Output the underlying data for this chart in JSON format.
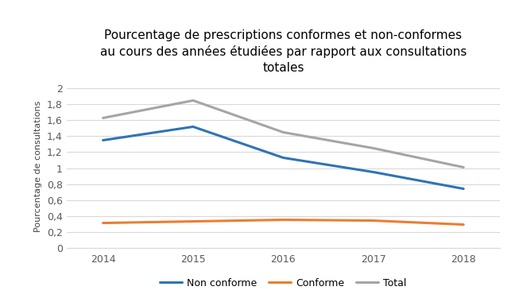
{
  "title": "Pourcentage de prescriptions conformes et non-conformes\nau cours des années étudiées par rapport aux consultations\ntotales",
  "ylabel": "Pourcentage de consultations",
  "years": [
    2014,
    2015,
    2016,
    2017,
    2018
  ],
  "non_conforme": [
    1.35,
    1.52,
    1.13,
    0.95,
    0.74
  ],
  "conforme": [
    0.31,
    0.33,
    0.35,
    0.34,
    0.29
  ],
  "total": [
    1.63,
    1.85,
    1.45,
    1.25,
    1.01
  ],
  "non_conforme_color": "#2E74B5",
  "conforme_color": "#ED7D31",
  "total_color": "#A5A5A5",
  "ylim": [
    0,
    2.05
  ],
  "yticks": [
    0,
    0.2,
    0.4,
    0.6,
    0.8,
    1.0,
    1.2,
    1.4,
    1.6,
    1.8,
    2.0
  ],
  "ytick_labels": [
    "0",
    "0,2",
    "0,4",
    "0,6",
    "0,8",
    "1",
    "1,2",
    "1,4",
    "1,6",
    "1,8",
    "2"
  ],
  "background_color": "#ffffff",
  "grid_color": "#d9d9d9",
  "title_fontsize": 11,
  "axis_label_fontsize": 8,
  "tick_fontsize": 9,
  "legend_fontsize": 9,
  "line_width": 2.2,
  "marker": "None",
  "marker_size": 0
}
